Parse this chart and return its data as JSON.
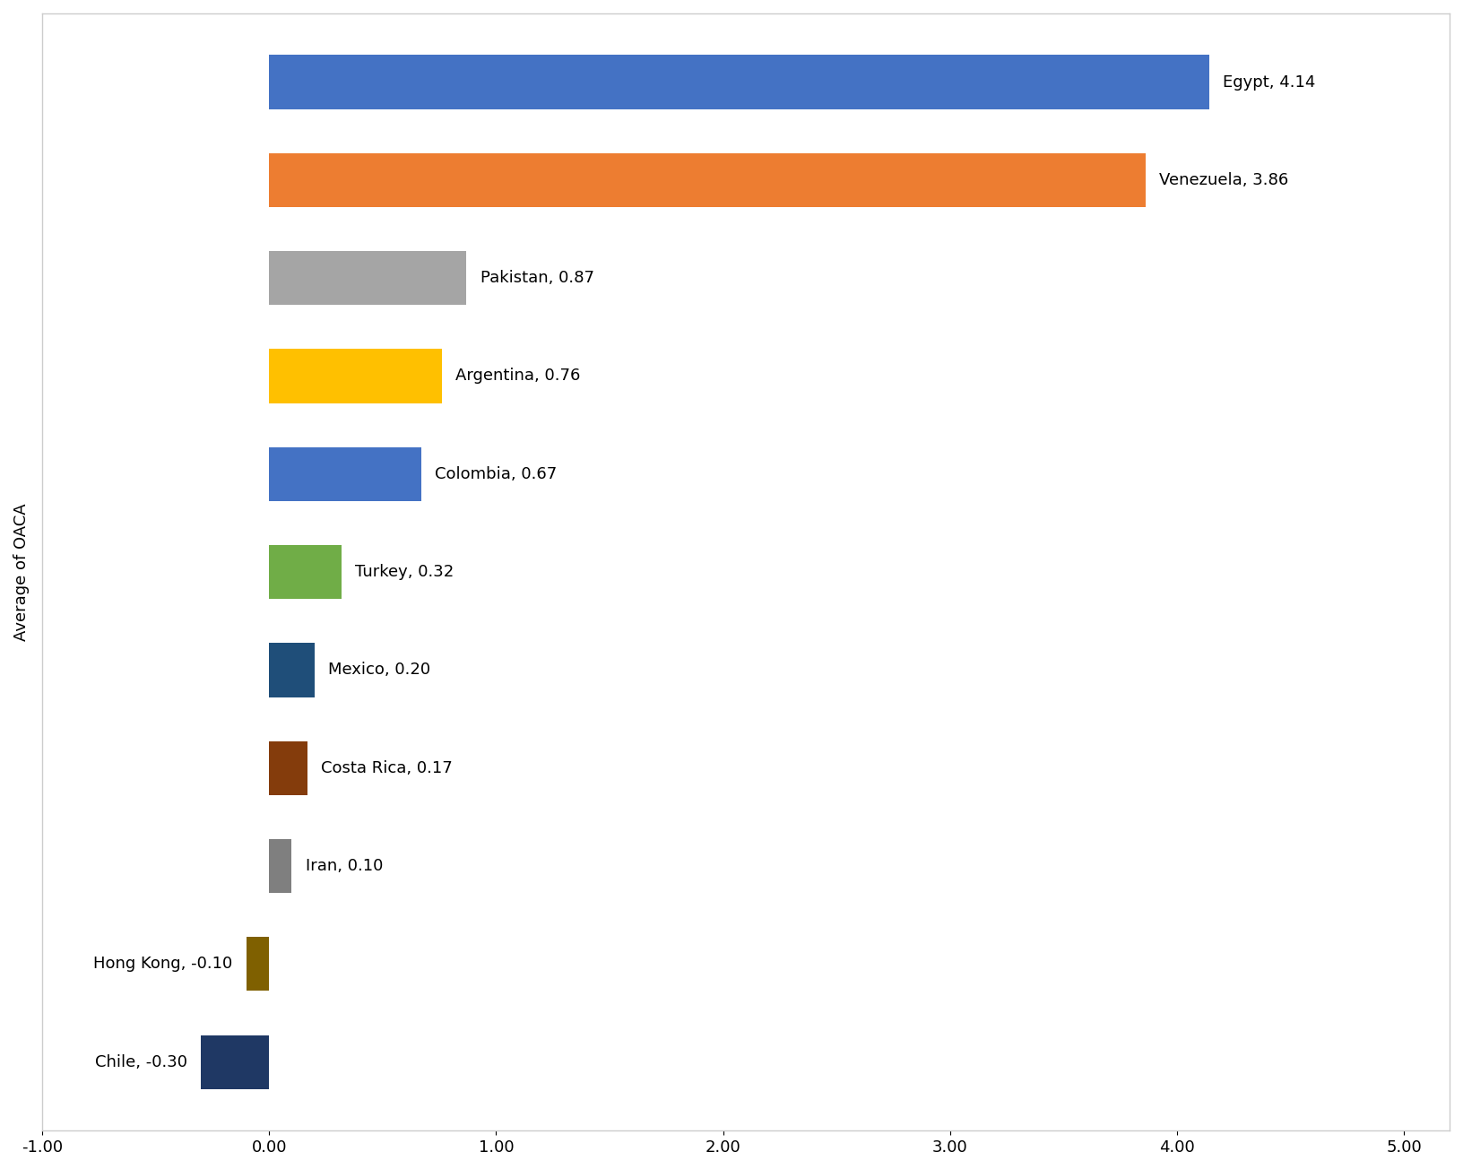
{
  "countries": [
    "Egypt",
    "Venezuela",
    "Pakistan",
    "Argentina",
    "Colombia",
    "Turkey",
    "Mexico",
    "Costa Rica",
    "Iran",
    "Hong Kong",
    "Chile"
  ],
  "values": [
    4.14,
    3.86,
    0.87,
    0.76,
    0.67,
    0.32,
    0.2,
    0.17,
    0.1,
    -0.1,
    -0.3
  ],
  "colors": [
    "#4472c4",
    "#ed7d31",
    "#a5a5a5",
    "#ffc000",
    "#4472c4",
    "#70ad47",
    "#1f4e79",
    "#843c0c",
    "#7f7f7f",
    "#7f6000",
    "#1f3864"
  ],
  "labels": [
    "Egypt, 4.14",
    "Venezuela, 3.86",
    "Pakistan, 0.87",
    "Argentina, 0.76",
    "Colombia, 0.67",
    "Turkey, 0.32",
    "Mexico, 0.20",
    "Costa Rica, 0.17",
    "Iran, 0.10",
    "Hong Kong, -0.10",
    "Chile, -0.30"
  ],
  "ylabel": "Average of OACA",
  "xlim": [
    -1.0,
    5.2
  ],
  "xticks": [
    -1.0,
    0.0,
    1.0,
    2.0,
    3.0,
    4.0,
    5.0
  ],
  "xtick_labels": [
    "-1.00",
    "0.00",
    "1.00",
    "2.00",
    "3.00",
    "4.00",
    "5.00"
  ],
  "background_color": "#ffffff",
  "label_fontsize": 13,
  "ylabel_fontsize": 13,
  "tick_fontsize": 13,
  "bar_height": 0.55
}
